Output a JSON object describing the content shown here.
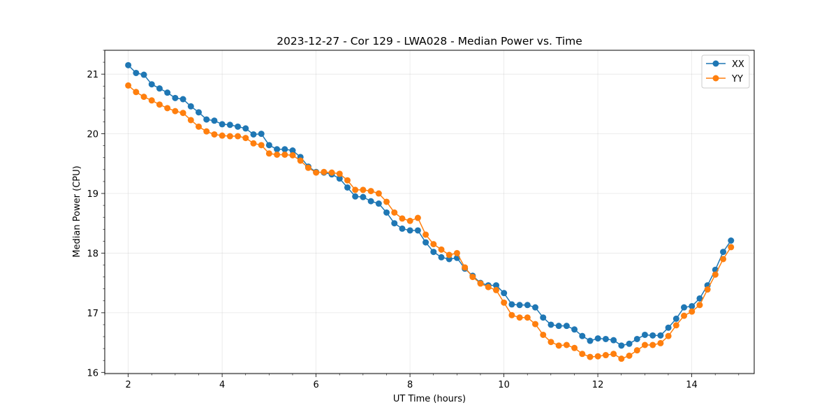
{
  "chart_data": {
    "type": "line",
    "title": "2023-12-27 - Cor 129 - LWA028 - Median Power vs. Time",
    "xlabel": "UT Time (hours)",
    "ylabel": "Median Power (CPU)",
    "xlim": [
      1.5,
      15.33
    ],
    "ylim": [
      15.98,
      21.4
    ],
    "xticks": [
      2,
      4,
      6,
      8,
      10,
      12,
      14
    ],
    "xtick_labels": [
      "2",
      "4",
      "6",
      "8",
      "10",
      "12",
      "14"
    ],
    "yticks": [
      16,
      17,
      18,
      19,
      20,
      21
    ],
    "ytick_labels": [
      "16",
      "17",
      "18",
      "19",
      "20",
      "21"
    ],
    "grid": true,
    "legend_position": "top-right",
    "x_start": 2.0,
    "x_step": 0.1667,
    "series": [
      {
        "name": "XX",
        "color": "#1f77b4",
        "values": [
          21.15,
          21.02,
          20.99,
          20.83,
          20.76,
          20.69,
          20.6,
          20.58,
          20.46,
          20.36,
          20.24,
          20.22,
          20.16,
          20.15,
          20.12,
          20.09,
          19.99,
          20.0,
          19.81,
          19.74,
          19.74,
          19.72,
          19.61,
          19.45,
          19.36,
          19.35,
          19.32,
          19.25,
          19.1,
          18.95,
          18.94,
          18.87,
          18.83,
          18.68,
          18.5,
          18.41,
          18.38,
          18.38,
          18.18,
          18.02,
          17.93,
          17.9,
          17.92,
          17.74,
          17.62,
          17.5,
          17.46,
          17.46,
          17.33,
          17.14,
          17.13,
          17.13,
          17.09,
          16.92,
          16.8,
          16.78,
          16.78,
          16.72,
          16.61,
          16.53,
          16.57,
          16.56,
          16.54,
          16.45,
          16.48,
          16.56,
          16.63,
          16.62,
          16.62,
          16.75,
          16.9,
          17.09,
          17.11,
          17.24,
          17.46,
          17.72,
          18.02,
          18.21
        ]
      },
      {
        "name": "YY",
        "color": "#ff7f0e",
        "values": [
          20.81,
          20.7,
          20.62,
          20.56,
          20.49,
          20.43,
          20.38,
          20.35,
          20.23,
          20.12,
          20.04,
          19.99,
          19.97,
          19.96,
          19.96,
          19.93,
          19.84,
          19.81,
          19.67,
          19.65,
          19.65,
          19.64,
          19.55,
          19.43,
          19.35,
          19.36,
          19.35,
          19.33,
          19.22,
          19.06,
          19.06,
          19.04,
          19.0,
          18.86,
          18.68,
          18.58,
          18.54,
          18.59,
          18.31,
          18.15,
          18.06,
          17.97,
          18.0,
          17.76,
          17.6,
          17.49,
          17.43,
          17.38,
          17.17,
          16.96,
          16.92,
          16.92,
          16.81,
          16.63,
          16.51,
          16.45,
          16.46,
          16.41,
          16.31,
          16.26,
          16.27,
          16.29,
          16.31,
          16.23,
          16.28,
          16.37,
          16.46,
          16.46,
          16.49,
          16.61,
          16.79,
          16.95,
          17.02,
          17.13,
          17.39,
          17.64,
          17.9,
          18.1
        ]
      }
    ]
  }
}
